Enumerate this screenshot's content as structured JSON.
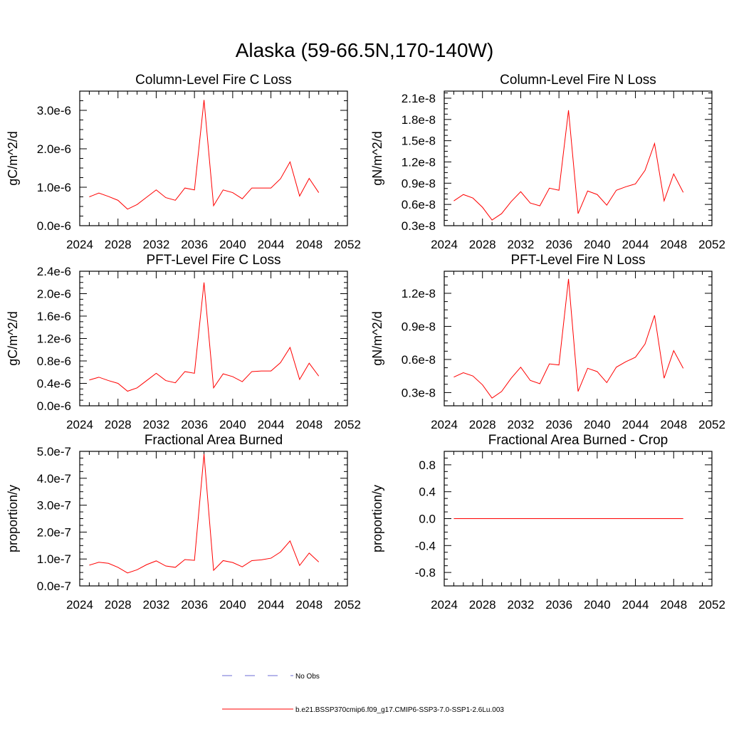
{
  "page_title": "Alaska (59-66.5N,170-140W)",
  "colors": {
    "series": "#ff0000",
    "obs": "#6b6bd6",
    "axis": "#000000"
  },
  "legend": {
    "items": [
      {
        "label": "No Obs",
        "style": "dashed",
        "color": "#6b6bd6"
      },
      {
        "label": "b.e21.BSSP370cmip6.f09_g17.CMIP6-SSP3-7.0-SSP1-2.6Lu.003",
        "style": "solid",
        "color": "#ff0000"
      }
    ]
  },
  "chart_data": [
    {
      "type": "line",
      "title": "Column-Level Fire C Loss",
      "ylabel": "gC/m^2/d",
      "xlim": [
        2024,
        2052
      ],
      "xticks": [
        2024,
        2028,
        2032,
        2036,
        2040,
        2044,
        2048,
        2052
      ],
      "ylim": [
        0,
        3.5e-06
      ],
      "yticks": [
        0,
        1e-06,
        2e-06,
        3e-06
      ],
      "ytick_labels": [
        "0.0e-6",
        "1.0e-6",
        "2.0e-6",
        "3.0e-6"
      ],
      "x": [
        2025,
        2026,
        2027,
        2028,
        2029,
        2030,
        2031,
        2032,
        2033,
        2034,
        2035,
        2036,
        2037,
        2038,
        2039,
        2040,
        2041,
        2042,
        2043,
        2044,
        2045,
        2046,
        2047,
        2048,
        2049
      ],
      "series": [
        {
          "values": [
            7.5e-07,
            8.5e-07,
            7.6e-07,
            6.6e-07,
            4.3e-07,
            5.5e-07,
            7.4e-07,
            9.3e-07,
            7.3e-07,
            6.6e-07,
            9.8e-07,
            9.3e-07,
            3.27e-06,
            5.2e-07,
            9.3e-07,
            8.6e-07,
            7e-07,
            9.8e-07,
            9.8e-07,
            9.8e-07,
            1.22e-06,
            1.66e-06,
            7.7e-07,
            1.23e-06,
            8.6e-07
          ]
        }
      ]
    },
    {
      "type": "line",
      "title": "Column-Level Fire N Loss",
      "ylabel": "gN/m^2/d",
      "xlim": [
        2024,
        2052
      ],
      "xticks": [
        2024,
        2028,
        2032,
        2036,
        2040,
        2044,
        2048,
        2052
      ],
      "ylim": [
        3e-09,
        2.2e-08
      ],
      "yticks": [
        3e-09,
        6e-09,
        9e-09,
        1.2e-08,
        1.5e-08,
        1.8e-08,
        2.1e-08
      ],
      "ytick_labels": [
        "0.3e-8",
        "0.6e-8",
        "0.9e-8",
        "1.2e-8",
        "1.5e-8",
        "1.8e-8",
        "2.1e-8"
      ],
      "x": [
        2025,
        2026,
        2027,
        2028,
        2029,
        2030,
        2031,
        2032,
        2033,
        2034,
        2035,
        2036,
        2037,
        2038,
        2039,
        2040,
        2041,
        2042,
        2043,
        2044,
        2045,
        2046,
        2047,
        2048,
        2049
      ],
      "series": [
        {
          "values": [
            6.5e-09,
            7.4e-09,
            6.9e-09,
            5.6e-09,
            3.8e-09,
            4.7e-09,
            6.4e-09,
            7.8e-09,
            6.2e-09,
            5.8e-09,
            8.3e-09,
            8e-09,
            1.93e-08,
            4.7e-09,
            7.9e-09,
            7.4e-09,
            5.9e-09,
            8e-09,
            8.5e-09,
            8.9e-09,
            1.08e-08,
            1.46e-08,
            6.5e-09,
            1.03e-08,
            7.7e-09
          ]
        }
      ]
    },
    {
      "type": "line",
      "title": "PFT-Level Fire C Loss",
      "ylabel": "gC/m^2/d",
      "xlim": [
        2024,
        2052
      ],
      "xticks": [
        2024,
        2028,
        2032,
        2036,
        2040,
        2044,
        2048,
        2052
      ],
      "ylim": [
        0,
        2.4e-06
      ],
      "yticks": [
        0,
        4e-07,
        8e-07,
        1.2e-06,
        1.6e-06,
        2e-06,
        2.4e-06
      ],
      "ytick_labels": [
        "0.0e-6",
        "0.4e-6",
        "0.8e-6",
        "1.2e-6",
        "1.6e-6",
        "2.0e-6",
        "2.4e-6"
      ],
      "x": [
        2025,
        2026,
        2027,
        2028,
        2029,
        2030,
        2031,
        2032,
        2033,
        2034,
        2035,
        2036,
        2037,
        2038,
        2039,
        2040,
        2041,
        2042,
        2043,
        2044,
        2045,
        2046,
        2047,
        2048,
        2049
      ],
      "series": [
        {
          "values": [
            4.6e-07,
            5.1e-07,
            4.5e-07,
            4e-07,
            2.6e-07,
            3.2e-07,
            4.5e-07,
            5.8e-07,
            4.5e-07,
            4.1e-07,
            6.1e-07,
            5.8e-07,
            2.2e-06,
            3.2e-07,
            5.7e-07,
            5.2e-07,
            4.3e-07,
            6.1e-07,
            6.2e-07,
            6.2e-07,
            7.7e-07,
            1.04e-06,
            4.7e-07,
            7.6e-07,
            5.3e-07
          ]
        }
      ]
    },
    {
      "type": "line",
      "title": "PFT-Level Fire N Loss",
      "ylabel": "gN/m^2/d",
      "xlim": [
        2024,
        2052
      ],
      "xticks": [
        2024,
        2028,
        2032,
        2036,
        2040,
        2044,
        2048,
        2052
      ],
      "ylim": [
        1.8e-09,
        1.4e-08
      ],
      "yticks": [
        3e-09,
        6e-09,
        9e-09,
        1.2e-08
      ],
      "ytick_labels": [
        "0.3e-8",
        "0.6e-8",
        "0.9e-8",
        "1.2e-8"
      ],
      "x": [
        2025,
        2026,
        2027,
        2028,
        2029,
        2030,
        2031,
        2032,
        2033,
        2034,
        2035,
        2036,
        2037,
        2038,
        2039,
        2040,
        2041,
        2042,
        2043,
        2044,
        2045,
        2046,
        2047,
        2048,
        2049
      ],
      "series": [
        {
          "values": [
            4.4e-09,
            4.8e-09,
            4.5e-09,
            3.7e-09,
            2.5e-09,
            3.1e-09,
            4.3e-09,
            5.3e-09,
            4.1e-09,
            3.8e-09,
            5.6e-09,
            5.5e-09,
            1.33e-08,
            3.1e-09,
            5.2e-09,
            4.9e-09,
            3.9e-09,
            5.3e-09,
            5.8e-09,
            6.2e-09,
            7.4e-09,
            1e-08,
            4.3e-09,
            6.8e-09,
            5.2e-09
          ]
        }
      ]
    },
    {
      "type": "line",
      "title": "Fractional Area Burned",
      "ylabel": "proportion/y",
      "xlim": [
        2024,
        2052
      ],
      "xticks": [
        2024,
        2028,
        2032,
        2036,
        2040,
        2044,
        2048,
        2052
      ],
      "ylim": [
        0,
        5e-07
      ],
      "yticks": [
        0,
        1e-07,
        2e-07,
        3e-07,
        4e-07,
        5e-07
      ],
      "ytick_labels": [
        "0.0e-7",
        "1.0e-7",
        "2.0e-7",
        "3.0e-7",
        "4.0e-7",
        "5.0e-7"
      ],
      "x": [
        2025,
        2026,
        2027,
        2028,
        2029,
        2030,
        2031,
        2032,
        2033,
        2034,
        2035,
        2036,
        2037,
        2038,
        2039,
        2040,
        2041,
        2042,
        2043,
        2044,
        2045,
        2046,
        2047,
        2048,
        2049
      ],
      "series": [
        {
          "values": [
            7.7e-08,
            8.8e-08,
            8.4e-08,
            6.9e-08,
            4.8e-08,
            6e-08,
            7.9e-08,
            9.3e-08,
            7.4e-08,
            6.9e-08,
            9.8e-08,
            9.5e-08,
            4.9e-07,
            5.8e-08,
            9.4e-08,
            8.7e-08,
            7.1e-08,
            9.4e-08,
            9.7e-08,
            1.03e-07,
            1.26e-07,
            1.67e-07,
            7.6e-08,
            1.22e-07,
            8.9e-08
          ]
        }
      ]
    },
    {
      "type": "line",
      "title": "Fractional Area Burned - Crop",
      "ylabel": "proportion/y",
      "xlim": [
        2024,
        2052
      ],
      "xticks": [
        2024,
        2028,
        2032,
        2036,
        2040,
        2044,
        2048,
        2052
      ],
      "ylim": [
        -1.0,
        1.0
      ],
      "yticks": [
        -0.8,
        -0.4,
        0.0,
        0.4,
        0.8
      ],
      "ytick_labels": [
        "-0.8",
        "-0.4",
        "0.0",
        "0.4",
        "0.8"
      ],
      "x": [
        2025,
        2026,
        2027,
        2028,
        2029,
        2030,
        2031,
        2032,
        2033,
        2034,
        2035,
        2036,
        2037,
        2038,
        2039,
        2040,
        2041,
        2042,
        2043,
        2044,
        2045,
        2046,
        2047,
        2048,
        2049
      ],
      "series": [
        {
          "values": [
            0,
            0,
            0,
            0,
            0,
            0,
            0,
            0,
            0,
            0,
            0,
            0,
            0,
            0,
            0,
            0,
            0,
            0,
            0,
            0,
            0,
            0,
            0,
            0,
            0
          ]
        }
      ]
    }
  ]
}
